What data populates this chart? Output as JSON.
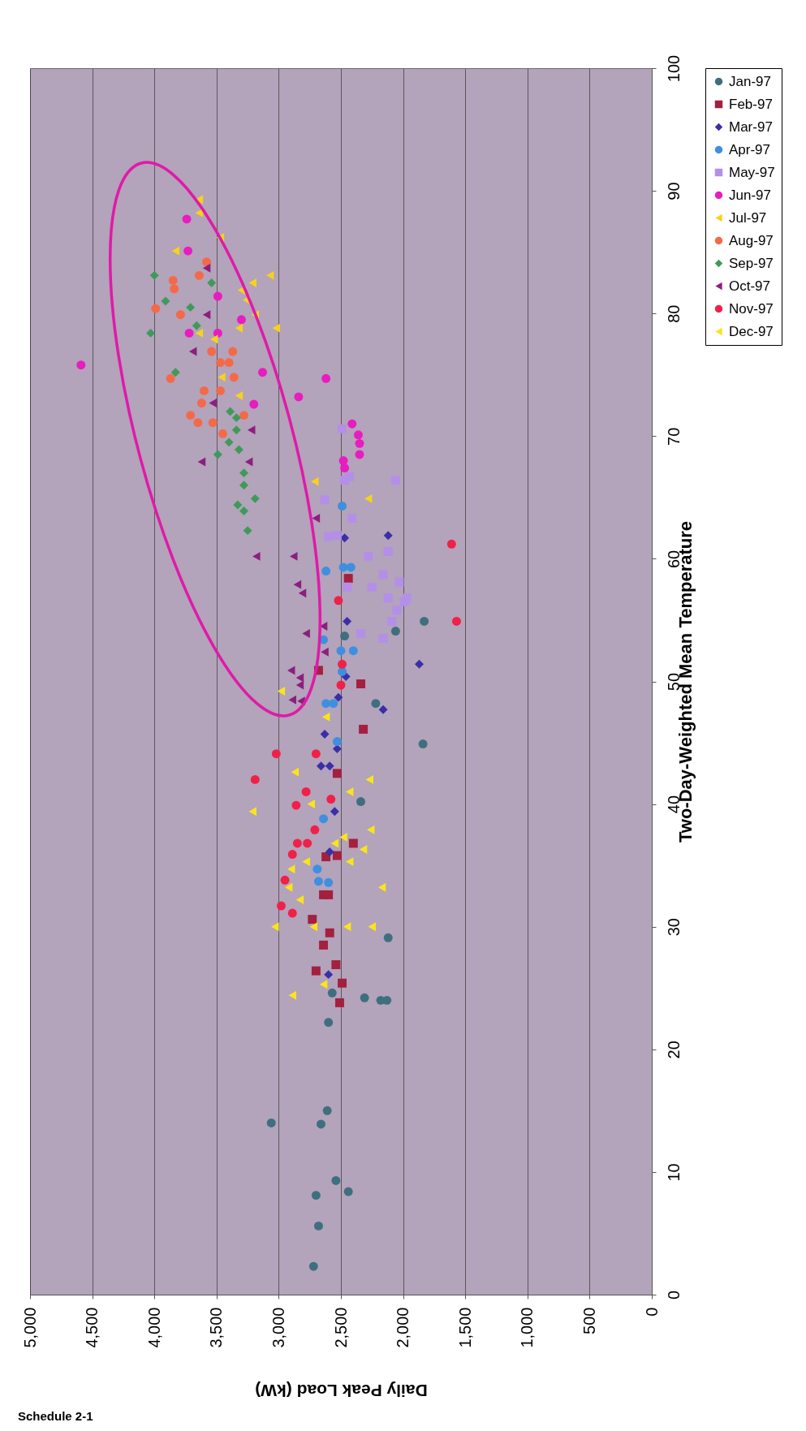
{
  "chart_data": {
    "type": "scatter",
    "xlabel": "Daily Peak Load (kW)",
    "ylabel": "Two-Day-Weighted Mean Temperature",
    "xlim": [
      5000,
      0
    ],
    "xticks": [
      {
        "value": 5000,
        "label": "5,000"
      },
      {
        "value": 4500,
        "label": "4,500"
      },
      {
        "value": 4000,
        "label": "4,000"
      },
      {
        "value": 3500,
        "label": "3,500"
      },
      {
        "value": 3000,
        "label": "3,000"
      },
      {
        "value": 2500,
        "label": "2,500"
      },
      {
        "value": 2000,
        "label": "2,000"
      },
      {
        "value": 1500,
        "label": "1,500"
      },
      {
        "value": 1000,
        "label": "1,000"
      },
      500,
      0
    ],
    "ylim": [
      0,
      100
    ],
    "yticks": [
      0,
      10,
      20,
      30,
      40,
      50,
      60,
      70,
      80,
      90,
      100
    ],
    "grid": "x",
    "legend": "right",
    "annotations": [
      "Schedule 2-1"
    ],
    "series": [
      {
        "name": "Jan-97",
        "color": "#3f6f7f",
        "marker": "circle",
        "values": [
          2.3,
          5.6,
          8.1,
          8.4,
          9.3,
          13.9,
          14.0,
          15.0,
          22.2,
          24.0,
          24.0,
          24.2,
          24.6,
          29.1,
          40.2,
          44.9,
          48.2,
          53.7,
          54.1,
          54.9
        ],
        "x": [
          2720,
          2680,
          2700,
          2440,
          2540,
          2660,
          3060,
          2610,
          2600,
          2180,
          2130,
          2310,
          2570,
          2120,
          2340,
          1840,
          2220,
          2470,
          2060,
          1830
        ]
      },
      {
        "name": "Feb-97",
        "color": "#a3203f",
        "marker": "square",
        "values": [
          23.8,
          25.4,
          26.4,
          26.9,
          28.5,
          29.5,
          30.6,
          32.6,
          32.6,
          35.7,
          35.8,
          36.8,
          42.5,
          46.1,
          49.8,
          50.9,
          58.4
        ],
        "x": [
          2510,
          2490,
          2700,
          2540,
          2640,
          2590,
          2730,
          2640,
          2600,
          2620,
          2530,
          2400,
          2530,
          2320,
          2340,
          2680,
          2440
        ]
      },
      {
        "name": "Mar-97",
        "color": "#3a2fa8",
        "marker": "diamond",
        "values": [
          26.1,
          36.1,
          39.4,
          43.1,
          43.1,
          44.5,
          45.7,
          47.7,
          48.7,
          50.4,
          51.4,
          54.9,
          61.7,
          61.9
        ],
        "x": [
          2600,
          2590,
          2550,
          2660,
          2590,
          2530,
          2630,
          2160,
          2520,
          2460,
          1870,
          2450,
          2470,
          2120
        ]
      },
      {
        "name": "Apr-97",
        "color": "#3f8fe0",
        "marker": "circle",
        "values": [
          33.6,
          33.7,
          34.7,
          38.8,
          45.1,
          48.2,
          48.2,
          50.8,
          52.5,
          52.5,
          53.4,
          59.0,
          59.3,
          59.3,
          64.3
        ],
        "x": [
          2600,
          2680,
          2690,
          2640,
          2530,
          2620,
          2560,
          2490,
          2500,
          2400,
          2640,
          2620,
          2480,
          2420,
          2490
        ]
      },
      {
        "name": "May-97",
        "color": "#b48fe8",
        "marker": "square",
        "values": [
          53.5,
          53.9,
          54.9,
          55.8,
          56.5,
          56.8,
          56.8,
          57.7,
          57.7,
          58.1,
          58.7,
          60.2,
          60.6,
          61.8,
          61.9,
          63.3,
          64.8,
          66.4,
          66.4,
          66.7,
          70.6
        ],
        "x": [
          2160,
          2340,
          2090,
          2050,
          1990,
          2120,
          1970,
          2250,
          2450,
          2030,
          2160,
          2280,
          2120,
          2600,
          2530,
          2410,
          2630,
          2060,
          2470,
          2430,
          2490
        ]
      },
      {
        "name": "Jun-97",
        "color": "#e81cc0",
        "marker": "circle",
        "values": [
          67.4,
          68.0,
          68.5,
          69.4,
          70.1,
          71.0,
          72.6,
          73.2,
          74.7,
          75.2,
          75.8,
          78.4,
          78.4,
          79.5,
          81.4,
          85.1,
          87.7
        ],
        "x": [
          2470,
          2480,
          2350,
          2350,
          2360,
          2410,
          3200,
          2840,
          2620,
          3130,
          4590,
          3720,
          3490,
          3300,
          3490,
          3730,
          3740
        ]
      },
      {
        "name": "Jul-97",
        "color": "#f6d21a",
        "marker": "triangle",
        "values": [
          64.9,
          66.3,
          73.3,
          74.8,
          77.9,
          78.4,
          78.8,
          78.8,
          79.9,
          81.1,
          81.9,
          82.5,
          83.1,
          85.1,
          86.2,
          88.2,
          89.3
        ],
        "x": [
          2280,
          2710,
          3320,
          3460,
          3520,
          3640,
          3320,
          3020,
          3190,
          3260,
          3300,
          3210,
          3070,
          3830,
          3470,
          3640,
          3640
        ]
      },
      {
        "name": "Aug-97",
        "color": "#f46a48",
        "marker": "circle",
        "values": [
          70.2,
          71.1,
          71.1,
          71.7,
          71.7,
          72.7,
          73.7,
          73.7,
          74.7,
          74.8,
          76.0,
          76.0,
          76.9,
          76.9,
          79.9,
          80.4,
          82.0,
          82.7,
          83.1,
          84.2
        ],
        "x": [
          3450,
          3650,
          3530,
          3710,
          3280,
          3620,
          3600,
          3470,
          3870,
          3360,
          3470,
          3400,
          3540,
          3370,
          3790,
          3990,
          3840,
          3850,
          3640,
          3580
        ]
      },
      {
        "name": "Sep-97",
        "color": "#3f9a5a",
        "marker": "diamond",
        "values": [
          62.3,
          63.9,
          64.4,
          64.9,
          66.0,
          67.0,
          68.5,
          68.9,
          69.5,
          70.5,
          71.5,
          72.0,
          75.2,
          78.4,
          79.0,
          80.5,
          81.0,
          82.5,
          83.1
        ],
        "x": [
          3250,
          3280,
          3330,
          3190,
          3280,
          3280,
          3490,
          3320,
          3400,
          3340,
          3340,
          3390,
          3830,
          4030,
          3660,
          3710,
          3910,
          3540,
          4000
        ]
      },
      {
        "name": "Oct-97",
        "color": "#8c1f7e",
        "marker": "triangle",
        "values": [
          48.4,
          48.5,
          49.7,
          50.3,
          50.9,
          52.4,
          53.9,
          54.5,
          null,
          57.2,
          57.9,
          60.2,
          60.2,
          63.3,
          67.9,
          67.9,
          70.5,
          72.7,
          76.9,
          79.9,
          83.7
        ],
        "x": [
          2820,
          2890,
          2830,
          2830,
          2900,
          2630,
          2780,
          2640,
          null,
          2810,
          2850,
          3180,
          2880,
          2700,
          3620,
          3240,
          3220,
          3530,
          3690,
          3580,
          3580
        ]
      },
      {
        "name": "Nov-97",
        "color": "#f02048",
        "marker": "circle",
        "values": [
          31.1,
          31.7,
          33.8,
          35.9,
          36.8,
          36.8,
          37.9,
          39.9,
          40.4,
          41.0,
          42.0,
          44.1,
          44.1,
          49.7,
          51.4,
          54.9,
          56.6,
          61.2
        ],
        "x": [
          2890,
          2980,
          2950,
          2890,
          2850,
          2770,
          2710,
          2860,
          2580,
          2780,
          3190,
          3020,
          2700,
          2500,
          2490,
          1570,
          2520,
          1610
        ]
      },
      {
        "name": "Dec-97",
        "color": "#fae41a",
        "marker": "triangle",
        "values": [
          24.4,
          25.3,
          30.0,
          30.0,
          30.0,
          30.0,
          32.2,
          33.2,
          33.2,
          34.7,
          35.3,
          35.3,
          36.3,
          36.8,
          37.3,
          37.9,
          39.4,
          40.0,
          41.0,
          42.0,
          42.6,
          47.1,
          49.2
        ],
        "x": [
          2890,
          2640,
          3030,
          2720,
          2450,
          2250,
          2830,
          2920,
          2170,
          2900,
          2780,
          2430,
          2320,
          2550,
          2480,
          2260,
          3210,
          2740,
          2430,
          2270,
          2870,
          2620,
          2980
        ]
      }
    ]
  }
}
